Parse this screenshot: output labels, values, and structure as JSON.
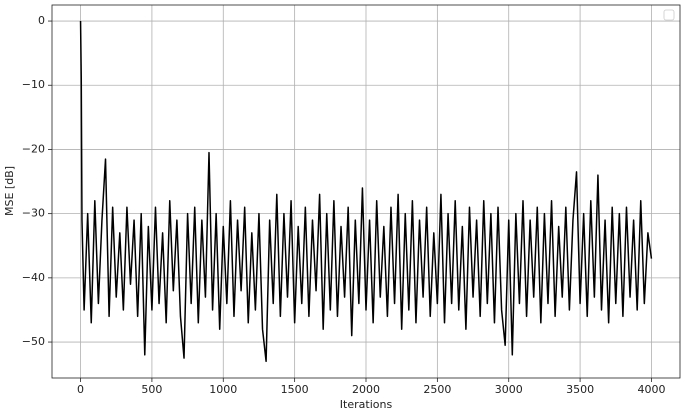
{
  "chart_data": {
    "type": "line",
    "x_label": "Iterations",
    "y_label": "MSE [dB]",
    "x": [
      0,
      5,
      10,
      25,
      50,
      75,
      100,
      125,
      150,
      175,
      200,
      225,
      250,
      275,
      300,
      325,
      350,
      375,
      400,
      425,
      450,
      475,
      500,
      525,
      550,
      575,
      600,
      625,
      650,
      675,
      700,
      725,
      750,
      775,
      800,
      825,
      850,
      875,
      900,
      925,
      950,
      975,
      1000,
      1025,
      1050,
      1075,
      1100,
      1125,
      1150,
      1175,
      1200,
      1225,
      1250,
      1275,
      1300,
      1325,
      1350,
      1375,
      1400,
      1425,
      1450,
      1475,
      1500,
      1525,
      1550,
      1575,
      1600,
      1625,
      1650,
      1675,
      1700,
      1725,
      1750,
      1775,
      1800,
      1825,
      1850,
      1875,
      1900,
      1925,
      1950,
      1975,
      2000,
      2025,
      2050,
      2075,
      2100,
      2125,
      2150,
      2175,
      2200,
      2225,
      2250,
      2275,
      2300,
      2325,
      2350,
      2375,
      2400,
      2425,
      2450,
      2475,
      2500,
      2525,
      2550,
      2575,
      2600,
      2625,
      2650,
      2675,
      2700,
      2725,
      2750,
      2775,
      2800,
      2825,
      2850,
      2875,
      2900,
      2925,
      2950,
      2975,
      3000,
      3025,
      3050,
      3075,
      3100,
      3125,
      3150,
      3175,
      3200,
      3225,
      3250,
      3275,
      3300,
      3325,
      3350,
      3375,
      3400,
      3425,
      3450,
      3475,
      3500,
      3525,
      3550,
      3575,
      3600,
      3625,
      3650,
      3675,
      3700,
      3725,
      3750,
      3775,
      3800,
      3825,
      3850,
      3875,
      3900,
      3925,
      3950,
      3975,
      4000
    ],
    "series": [
      {
        "color": "#000000",
        "values": [
          0,
          -9,
          -31,
          -45,
          -30,
          -47,
          -28,
          -44,
          -31,
          -21.5,
          -46,
          -29,
          -43,
          -33,
          -45,
          -29,
          -41,
          -31,
          -46,
          -30,
          -52,
          -32,
          -45,
          -29,
          -44,
          -33,
          -47,
          -28,
          -42,
          -31,
          -46,
          -52.5,
          -30,
          -44,
          -29,
          -47,
          -31,
          -43,
          -20.5,
          -45,
          -30,
          -48,
          -32,
          -44,
          -28,
          -46,
          -31,
          -42,
          -29,
          -47,
          -33,
          -45,
          -30,
          -48,
          -53,
          -31,
          -44,
          -27,
          -46,
          -30,
          -43,
          -28,
          -47,
          -32,
          -44,
          -29,
          -46,
          -31,
          -42,
          -27,
          -48,
          -30,
          -45,
          -28,
          -46,
          -32,
          -43,
          -29,
          -49,
          -31,
          -44,
          -26,
          -45,
          -31,
          -47,
          -28,
          -43,
          -32,
          -46,
          -29,
          -44,
          -27,
          -48,
          -30,
          -45,
          -28,
          -47,
          -31,
          -43,
          -29,
          -46,
          -33,
          -44,
          -27,
          -47,
          -30,
          -44,
          -28,
          -45,
          -32,
          -48,
          -29,
          -43,
          -31,
          -46,
          -28,
          -44,
          -30,
          -47,
          -29,
          -45,
          -50.5,
          -31,
          -52,
          -30,
          -44,
          -28,
          -46,
          -31,
          -43,
          -29,
          -47,
          -30,
          -44,
          -28,
          -46,
          -32,
          -43,
          -29,
          -45,
          -31,
          -23.5,
          -44,
          -30,
          -46,
          -28,
          -43,
          -24,
          -45,
          -31,
          -47,
          -29,
          -44,
          -30,
          -46,
          -29,
          -43,
          -31,
          -45,
          -28,
          -44,
          -33,
          -37
        ]
      }
    ],
    "xlim": [
      -200,
      4200
    ],
    "ylim": [
      -55.6,
      2.5
    ],
    "xticks": [
      0,
      500,
      1000,
      1500,
      2000,
      2500,
      3000,
      3500,
      4000
    ],
    "yticks": [
      0,
      {
        "value": -10,
        "label": "−10"
      },
      {
        "value": -20,
        "label": "−20"
      },
      {
        "value": -30,
        "label": "−30"
      },
      {
        "value": -40,
        "label": "−40"
      },
      {
        "value": -50,
        "label": "−50"
      }
    ],
    "grid": true
  }
}
